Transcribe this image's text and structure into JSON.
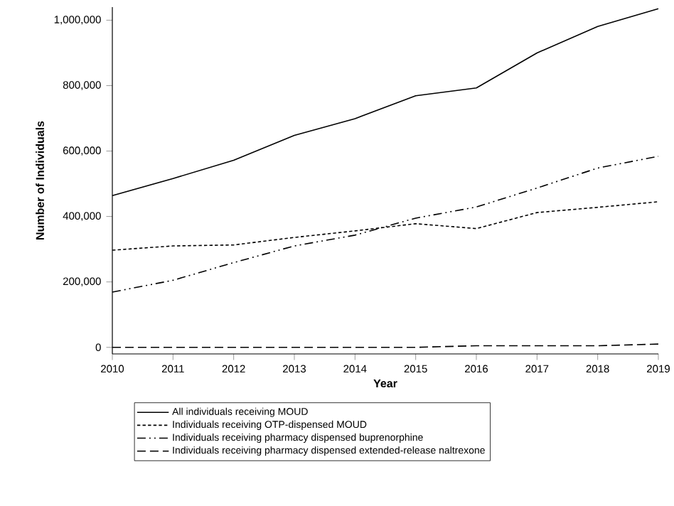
{
  "chart_data": {
    "type": "line",
    "xlabel": "Year",
    "ylabel": "Number of Individuals",
    "x": [
      2010,
      2011,
      2012,
      2013,
      2014,
      2015,
      2016,
      2017,
      2018,
      2019
    ],
    "xlim": [
      2010,
      2019
    ],
    "xticks": [
      2010,
      2011,
      2012,
      2013,
      2014,
      2015,
      2016,
      2017,
      2018,
      2019
    ],
    "ylim": [
      -20000,
      1040000
    ],
    "yticks": [
      {
        "value": 0,
        "label": "0"
      },
      {
        "value": 200000,
        "label": "200,000"
      },
      {
        "value": 400000,
        "label": "400,000"
      },
      {
        "value": 600000,
        "label": "600,000"
      },
      {
        "value": 800000,
        "label": "800,000"
      },
      {
        "value": 1000000,
        "label": "1,000,000"
      }
    ],
    "legend": "bottom",
    "grid": false,
    "series": [
      {
        "name": "All individuals receiving MOUD",
        "color": "#000000",
        "line_style": "solid",
        "values": [
          464000,
          516000,
          572000,
          648000,
          699000,
          769000,
          793000,
          900000,
          981000,
          1035000
        ]
      },
      {
        "name": "Individuals receiving OTP-dispensed MOUD",
        "color": "#000000",
        "line_style": "dotted",
        "values": [
          297000,
          310000,
          313000,
          336000,
          356000,
          378000,
          363000,
          412000,
          428000,
          445000
        ]
      },
      {
        "name": "Individuals receiving pharmacy dispensed buprenorphine",
        "color": "#000000",
        "line_style": "dashdot",
        "values": [
          169000,
          205000,
          259000,
          310000,
          343000,
          395000,
          429000,
          487000,
          548000,
          584000
        ]
      },
      {
        "name": "Individuals receiving pharmacy dispensed extended-release naltrexone",
        "color": "#000000",
        "line_style": "dashed",
        "values": [
          0,
          0,
          0,
          0,
          0,
          0,
          5000,
          5000,
          5000,
          10000
        ]
      }
    ]
  }
}
